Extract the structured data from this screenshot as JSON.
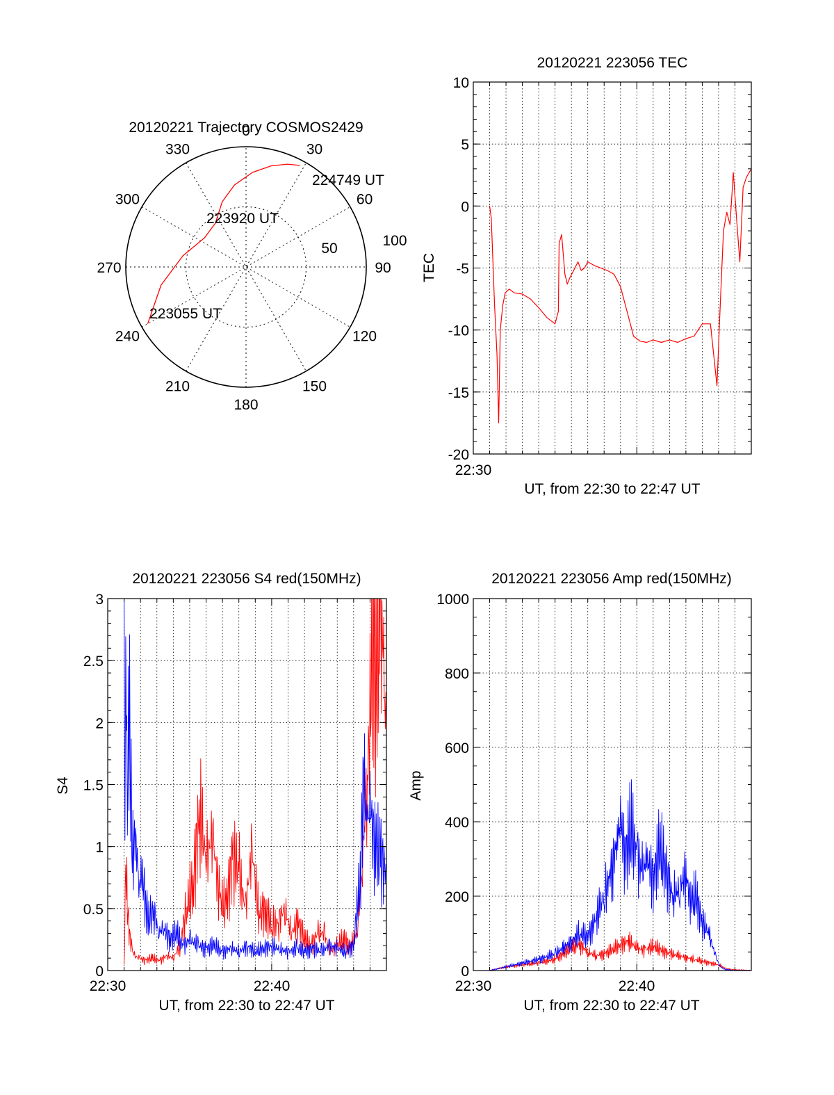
{
  "colors": {
    "red": "#ff0000",
    "blue": "#0000ff",
    "frame": "#000000"
  },
  "chart_data": [
    {
      "type": "polar",
      "title": "20120221 Trajectory COSMOS2429",
      "azimuth_labels": [
        "0",
        "30",
        "60",
        "90",
        "120",
        "150",
        "180",
        "210",
        "240",
        "270",
        "300",
        "330"
      ],
      "radial_labels": [
        "50",
        "100"
      ],
      "track_color": "red",
      "track_points": [
        {
          "az": 240,
          "el": 5
        },
        {
          "az": 258,
          "el": 25
        },
        {
          "az": 280,
          "el": 42
        },
        {
          "az": 305,
          "el": 52
        },
        {
          "az": 325,
          "el": 50
        },
        {
          "az": 340,
          "el": 38
        },
        {
          "az": 352,
          "el": 28
        },
        {
          "az": 4,
          "el": 19
        },
        {
          "az": 14,
          "el": 12
        },
        {
          "az": 22,
          "el": 7
        },
        {
          "az": 28,
          "el": 4
        }
      ],
      "annotations": [
        "224749 UT",
        "223920 UT",
        "223055 UT"
      ]
    },
    {
      "type": "line",
      "title": "20120221 223056 TEC",
      "ylabel": "TEC",
      "xlabel": "UT, from 22:30 to 22:47 UT",
      "x_tick_label": "22:30",
      "ylim": [
        -20,
        10
      ],
      "y_ticks": [
        "10",
        "5",
        "0",
        "-5",
        "-10",
        "-15",
        "-20"
      ],
      "xlim_minutes": [
        0,
        17
      ],
      "series": [
        {
          "color": "red",
          "x": [
            1.0,
            1.1,
            1.3,
            1.45,
            1.55,
            1.65,
            1.8,
            1.95,
            2.2,
            2.5,
            3,
            3.5,
            4,
            4.5,
            5.0,
            5.2,
            5.25,
            5.4,
            5.6,
            5.75,
            5.9,
            6.1,
            6.4,
            6.6,
            6.8,
            7,
            7.4,
            7.8,
            8.2,
            8.6,
            9,
            9.4,
            9.8,
            10.2,
            10.6,
            11,
            11.5,
            12,
            12.5,
            13,
            13.5,
            14,
            14.5,
            14.9,
            15.1,
            15.3,
            15.5,
            15.7,
            15.9,
            16.1,
            16.3,
            16.5,
            16.7,
            17
          ],
          "y": [
            0,
            -1,
            -8,
            -12,
            -17.5,
            -10,
            -8,
            -7,
            -6.7,
            -7,
            -7.1,
            -7.5,
            -8.2,
            -9.0,
            -9.5,
            -8.5,
            -3,
            -2.3,
            -5.5,
            -6.3,
            -5.8,
            -5.3,
            -4.5,
            -5.2,
            -5.0,
            -4.5,
            -4.8,
            -5.0,
            -5.2,
            -5.5,
            -6.5,
            -8.5,
            -10.5,
            -10.9,
            -11.0,
            -10.8,
            -11.0,
            -10.8,
            -11.0,
            -10.7,
            -10.5,
            -9.5,
            -9.5,
            -14.5,
            -8,
            -2,
            -0.5,
            -1.5,
            2.7,
            -1,
            -4.5,
            1.5,
            2.3,
            3.0
          ]
        }
      ]
    },
    {
      "type": "line",
      "title": "20120221 223056 S4 red(150MHz)",
      "ylabel": "S4",
      "xlabel": "UT, from 22:30 to 22:47 UT",
      "x_tick_labels": [
        "22:30",
        "22:40"
      ],
      "ylim": [
        0,
        3
      ],
      "y_ticks": [
        "3",
        "2.5",
        "2",
        "1.5",
        "1",
        "0.5",
        "0"
      ],
      "xlim_minutes": [
        0,
        17
      ],
      "series": [
        {
          "name": "red",
          "color": "red",
          "x": [
            1.0,
            1.1,
            1.3,
            1.6,
            1.9,
            2.3,
            2.7,
            3.2,
            3.6,
            4.0,
            4.4,
            4.8,
            5.2,
            5.6,
            6.0,
            6.4,
            6.8,
            7.2,
            7.6,
            8.0,
            8.4,
            8.8,
            9.2,
            9.6,
            10.0,
            10.4,
            10.8,
            11.2,
            11.6,
            12.0,
            12.4,
            12.8,
            13.2,
            13.6,
            14.0,
            14.4,
            14.8,
            15.2,
            15.5,
            15.8,
            16.0,
            16.2,
            16.4,
            16.6,
            16.8,
            17.0
          ],
          "y": [
            0.05,
            0.8,
            0.3,
            0.12,
            0.1,
            0.08,
            0.1,
            0.08,
            0.12,
            0.1,
            0.2,
            0.5,
            0.7,
            1.3,
            0.9,
            1.1,
            0.6,
            0.5,
            0.9,
            0.8,
            0.5,
            1.0,
            0.45,
            0.5,
            0.35,
            0.4,
            0.5,
            0.3,
            0.4,
            0.25,
            0.2,
            0.3,
            0.3,
            0.15,
            0.2,
            0.25,
            0.2,
            0.3,
            0.8,
            1.5,
            2.0,
            2.8,
            2.2,
            3.0,
            2.5,
            1.9
          ]
        },
        {
          "name": "blue",
          "color": "blue",
          "x": [
            1.0,
            1.05,
            1.1,
            1.2,
            1.3,
            1.5,
            1.7,
            1.9,
            2.1,
            2.3,
            2.5,
            2.8,
            3.1,
            3.4,
            3.8,
            4.2,
            4.6,
            5.0,
            5.5,
            6.0,
            6.5,
            7.0,
            7.5,
            8.0,
            8.5,
            9.0,
            9.5,
            10.0,
            10.5,
            11.0,
            11.5,
            12.0,
            12.5,
            13.0,
            13.5,
            14.0,
            14.5,
            15.0,
            15.2,
            15.4,
            15.6,
            15.8,
            16.0,
            16.3,
            16.6,
            17.0
          ],
          "y": [
            3.0,
            0.9,
            2.7,
            1.2,
            2.2,
            0.9,
            1.1,
            0.7,
            0.8,
            0.55,
            0.4,
            0.5,
            0.3,
            0.35,
            0.25,
            0.3,
            0.2,
            0.25,
            0.2,
            0.18,
            0.2,
            0.15,
            0.18,
            0.15,
            0.2,
            0.15,
            0.18,
            0.2,
            0.17,
            0.15,
            0.18,
            0.15,
            0.18,
            0.15,
            0.2,
            0.18,
            0.15,
            0.2,
            0.5,
            0.7,
            1.6,
            1.2,
            1.3,
            1.0,
            0.9,
            0.8
          ]
        }
      ]
    },
    {
      "type": "line",
      "title": "20120221 223056 Amp red(150MHz)",
      "ylabel": "Amp",
      "xlabel": "UT, from 22:30 to 22:47 UT",
      "x_tick_labels": [
        "22:30",
        "22:40"
      ],
      "ylim": [
        0,
        1000
      ],
      "y_ticks": [
        "1000",
        "800",
        "600",
        "400",
        "200",
        "0"
      ],
      "xlim_minutes": [
        0,
        17
      ],
      "series": [
        {
          "name": "red",
          "color": "red",
          "x": [
            1.0,
            2,
            3,
            4,
            5,
            5.5,
            6,
            6.5,
            7,
            7.5,
            8,
            8.5,
            9,
            9.5,
            10,
            10.5,
            11,
            11.5,
            12,
            12.5,
            13,
            13.5,
            14,
            14.5,
            15,
            15.5,
            16,
            17
          ],
          "y": [
            0,
            10,
            15,
            20,
            30,
            45,
            60,
            70,
            50,
            40,
            45,
            55,
            70,
            80,
            60,
            55,
            65,
            55,
            45,
            40,
            35,
            30,
            25,
            20,
            15,
            5,
            2,
            0
          ]
        },
        {
          "name": "blue",
          "color": "blue",
          "x": [
            1.0,
            2,
            3,
            4,
            5,
            5.5,
            6,
            6.5,
            7,
            7.5,
            8,
            8.5,
            8.8,
            9,
            9.3,
            9.6,
            10,
            10.3,
            10.6,
            11,
            11.4,
            11.8,
            12.2,
            12.6,
            13,
            13.3,
            13.6,
            14,
            14.4,
            14.8,
            15.1,
            15.4,
            16,
            17
          ],
          "y": [
            0,
            10,
            20,
            30,
            45,
            60,
            80,
            100,
            90,
            140,
            200,
            280,
            350,
            400,
            300,
            380,
            320,
            260,
            300,
            250,
            330,
            260,
            200,
            220,
            260,
            180,
            200,
            130,
            100,
            40,
            10,
            3,
            0,
            0
          ]
        }
      ]
    }
  ]
}
